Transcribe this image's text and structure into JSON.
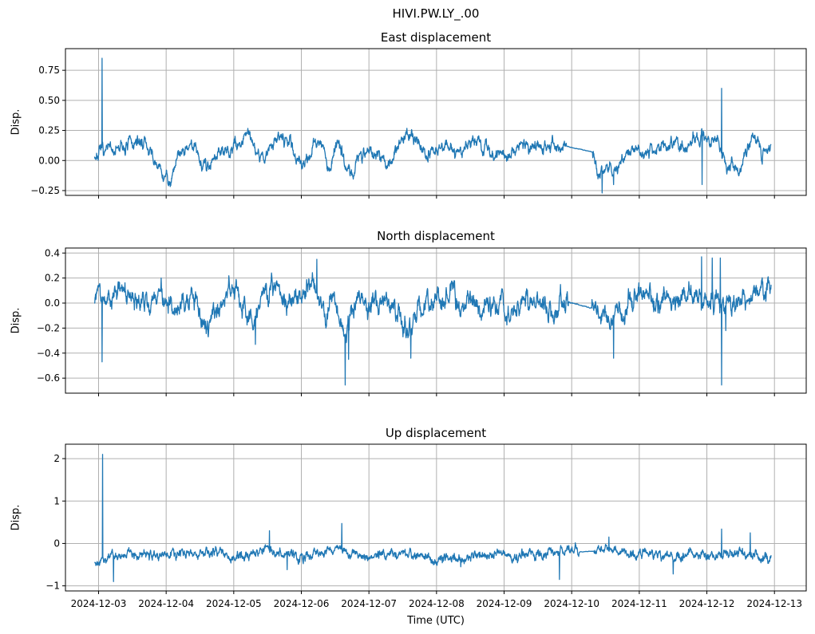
{
  "figure": {
    "suptitle": "HIVI.PW.LY_.00"
  },
  "style": {
    "line_color": "#1f77b4",
    "grid_color": "#b0b0b0",
    "frame_color": "#000000",
    "text_color": "#000000",
    "background": "#ffffff"
  },
  "x_axis": {
    "label": "Time (UTC)",
    "xlim": [
      -0.49,
      10.47
    ],
    "tick_positions": [
      0,
      1,
      2,
      3,
      4,
      5,
      6,
      7,
      8,
      9,
      10
    ],
    "tick_labels": [
      "2024-12-03",
      "2024-12-04",
      "2024-12-05",
      "2024-12-06",
      "2024-12-07",
      "2024-12-08",
      "2024-12-09",
      "2024-12-10",
      "2024-12-11",
      "2024-12-12",
      "2024-12-13"
    ],
    "data_range": [
      -0.06,
      9.95
    ],
    "samples": 2600,
    "seed": 7
  },
  "chart_data": [
    {
      "type": "line",
      "title": "East displacement",
      "ylabel": "Disp.",
      "ylim": [
        -0.29,
        0.93
      ],
      "yticks": [
        -0.25,
        0.0,
        0.25,
        0.5,
        0.75
      ],
      "ytick_labels": [
        "−0.25",
        "0.00",
        "0.25",
        "0.50",
        "0.75"
      ],
      "noise_sigma": 0.035,
      "noise_rho": 0.85,
      "flat_intervals": [
        [
          6.92,
          7.31
        ]
      ],
      "anchors": [
        [
          -0.06,
          0.04
        ],
        [
          0.15,
          0.07
        ],
        [
          0.35,
          0.1
        ],
        [
          0.55,
          0.14
        ],
        [
          0.68,
          0.16
        ],
        [
          0.82,
          -0.02
        ],
        [
          0.95,
          -0.12
        ],
        [
          1.05,
          -0.16
        ],
        [
          1.15,
          0.02
        ],
        [
          1.3,
          0.14
        ],
        [
          1.45,
          0.1
        ],
        [
          1.6,
          -0.06
        ],
        [
          1.75,
          0.1
        ],
        [
          1.9,
          0.05
        ],
        [
          2.05,
          0.12
        ],
        [
          2.2,
          0.28
        ],
        [
          2.32,
          0.1
        ],
        [
          2.45,
          0.02
        ],
        [
          2.6,
          0.14
        ],
        [
          2.72,
          0.24
        ],
        [
          2.85,
          0.12
        ],
        [
          3.0,
          -0.04
        ],
        [
          3.15,
          0.1
        ],
        [
          3.3,
          0.14
        ],
        [
          3.42,
          -0.08
        ],
        [
          3.55,
          0.22
        ],
        [
          3.68,
          -0.12
        ],
        [
          3.8,
          -0.02
        ],
        [
          3.95,
          0.1
        ],
        [
          4.1,
          0.06
        ],
        [
          4.25,
          -0.02
        ],
        [
          4.4,
          0.08
        ],
        [
          4.55,
          0.26
        ],
        [
          4.68,
          0.18
        ],
        [
          4.85,
          0.04
        ],
        [
          5.0,
          0.08
        ],
        [
          5.15,
          0.12
        ],
        [
          5.3,
          0.04
        ],
        [
          5.55,
          0.22
        ],
        [
          5.7,
          0.12
        ],
        [
          5.85,
          0.04
        ],
        [
          6.0,
          0.05
        ],
        [
          6.15,
          0.08
        ],
        [
          6.3,
          0.13
        ],
        [
          6.45,
          0.08
        ],
        [
          6.6,
          0.1
        ],
        [
          6.75,
          0.1
        ],
        [
          6.92,
          0.12
        ],
        [
          7.31,
          0.07
        ],
        [
          7.42,
          -0.12
        ],
        [
          7.52,
          -0.02
        ],
        [
          7.62,
          -0.14
        ],
        [
          7.75,
          0.02
        ],
        [
          7.9,
          0.1
        ],
        [
          8.05,
          0.06
        ],
        [
          8.2,
          0.09
        ],
        [
          8.35,
          0.12
        ],
        [
          8.5,
          0.14
        ],
        [
          8.62,
          0.09
        ],
        [
          8.75,
          0.13
        ],
        [
          8.9,
          0.18
        ],
        [
          9.05,
          0.2
        ],
        [
          9.18,
          0.18
        ],
        [
          9.28,
          -0.04
        ],
        [
          9.42,
          -0.08
        ],
        [
          9.52,
          -0.05
        ],
        [
          9.62,
          0.12
        ],
        [
          9.72,
          0.18
        ],
        [
          9.82,
          0.04
        ],
        [
          9.95,
          0.1
        ]
      ],
      "spikes": [
        [
          0.05,
          0.85
        ],
        [
          7.45,
          -0.27
        ],
        [
          7.62,
          -0.2
        ],
        [
          8.93,
          -0.2
        ],
        [
          9.22,
          0.6
        ]
      ]
    },
    {
      "type": "line",
      "title": "North displacement",
      "ylabel": "Disp.",
      "ylim": [
        -0.72,
        0.44
      ],
      "yticks": [
        -0.6,
        -0.4,
        -0.2,
        0.0,
        0.2,
        0.4
      ],
      "ytick_labels": [
        "−0.6",
        "−0.4",
        "−0.2",
        "0.0",
        "0.2",
        "0.4"
      ],
      "noise_sigma": 0.05,
      "noise_rho": 0.82,
      "flat_intervals": [
        [
          6.95,
          7.3
        ]
      ],
      "anchors": [
        [
          -0.06,
          0.02
        ],
        [
          0.1,
          0.04
        ],
        [
          0.25,
          0.08
        ],
        [
          0.4,
          0.12
        ],
        [
          0.55,
          -0.02
        ],
        [
          0.7,
          0.02
        ],
        [
          0.85,
          0.06
        ],
        [
          1.0,
          0.08
        ],
        [
          1.15,
          -0.06
        ],
        [
          1.3,
          0.04
        ],
        [
          1.45,
          0.02
        ],
        [
          1.6,
          -0.16
        ],
        [
          1.75,
          -0.02
        ],
        [
          1.9,
          0.08
        ],
        [
          2.05,
          0.1
        ],
        [
          2.2,
          -0.12
        ],
        [
          2.3,
          -0.18
        ],
        [
          2.45,
          0.08
        ],
        [
          2.6,
          0.14
        ],
        [
          2.75,
          -0.04
        ],
        [
          2.9,
          0.02
        ],
        [
          3.05,
          0.08
        ],
        [
          3.2,
          0.14
        ],
        [
          3.35,
          -0.1
        ],
        [
          3.5,
          0.05
        ],
        [
          3.62,
          -0.22
        ],
        [
          3.75,
          -0.05
        ],
        [
          3.9,
          0.02
        ],
        [
          4.05,
          -0.06
        ],
        [
          4.2,
          0.04
        ],
        [
          4.35,
          -0.02
        ],
        [
          4.5,
          -0.15
        ],
        [
          4.62,
          -0.28
        ],
        [
          4.75,
          0.0
        ],
        [
          4.9,
          0.04
        ],
        [
          5.05,
          0.0
        ],
        [
          5.2,
          0.1
        ],
        [
          5.35,
          -0.08
        ],
        [
          5.5,
          0.04
        ],
        [
          5.65,
          -0.1
        ],
        [
          5.8,
          0.0
        ],
        [
          5.95,
          0.04
        ],
        [
          6.1,
          -0.12
        ],
        [
          6.25,
          0.02
        ],
        [
          6.4,
          -0.04
        ],
        [
          6.55,
          0.02
        ],
        [
          6.7,
          -0.08
        ],
        [
          6.85,
          0.04
        ],
        [
          7.0,
          0.0
        ],
        [
          7.15,
          -0.02
        ],
        [
          7.3,
          -0.04
        ],
        [
          7.45,
          -0.08
        ],
        [
          7.6,
          -0.18
        ],
        [
          7.72,
          -0.12
        ],
        [
          7.85,
          -0.02
        ],
        [
          8.0,
          0.04
        ],
        [
          8.15,
          0.07
        ],
        [
          8.3,
          -0.04
        ],
        [
          8.45,
          0.0
        ],
        [
          8.6,
          0.03
        ],
        [
          8.75,
          0.1
        ],
        [
          8.9,
          0.05
        ],
        [
          9.05,
          0.0
        ],
        [
          9.2,
          -0.04
        ],
        [
          9.35,
          0.06
        ],
        [
          9.5,
          0.03
        ],
        [
          9.65,
          0.06
        ],
        [
          9.8,
          0.1
        ],
        [
          9.95,
          0.2
        ]
      ],
      "spikes": [
        [
          0.05,
          -0.47
        ],
        [
          2.32,
          -0.33
        ],
        [
          3.23,
          0.35
        ],
        [
          3.65,
          -0.655
        ],
        [
          3.7,
          -0.45
        ],
        [
          4.62,
          -0.44
        ],
        [
          7.62,
          -0.44
        ],
        [
          8.92,
          0.37
        ],
        [
          9.08,
          0.36
        ],
        [
          9.2,
          0.36
        ],
        [
          9.22,
          -0.655
        ],
        [
          9.28,
          -0.22
        ]
      ]
    },
    {
      "type": "line",
      "title": "Up displacement",
      "ylabel": "Disp.",
      "ylim": [
        -1.12,
        2.34
      ],
      "yticks": [
        -1,
        0,
        1,
        2
      ],
      "ytick_labels": [
        "−1",
        "0",
        "1",
        "2"
      ],
      "noise_sigma": 0.065,
      "noise_rho": 0.8,
      "flat_intervals": [
        [
          7.12,
          7.33
        ]
      ],
      "anchors": [
        [
          -0.06,
          -0.42
        ],
        [
          0.15,
          -0.32
        ],
        [
          0.35,
          -0.28
        ],
        [
          0.55,
          -0.25
        ],
        [
          0.75,
          -0.22
        ],
        [
          0.95,
          -0.3
        ],
        [
          1.15,
          -0.26
        ],
        [
          1.35,
          -0.22
        ],
        [
          1.55,
          -0.25
        ],
        [
          1.75,
          -0.2
        ],
        [
          1.95,
          -0.3
        ],
        [
          2.15,
          -0.26
        ],
        [
          2.35,
          -0.22
        ],
        [
          2.55,
          -0.16
        ],
        [
          2.75,
          -0.28
        ],
        [
          2.95,
          -0.32
        ],
        [
          3.15,
          -0.26
        ],
        [
          3.35,
          -0.22
        ],
        [
          3.55,
          -0.18
        ],
        [
          3.75,
          -0.26
        ],
        [
          3.95,
          -0.3
        ],
        [
          4.15,
          -0.24
        ],
        [
          4.35,
          -0.2
        ],
        [
          4.55,
          -0.24
        ],
        [
          4.75,
          -0.3
        ],
        [
          4.95,
          -0.38
        ],
        [
          5.15,
          -0.36
        ],
        [
          5.35,
          -0.34
        ],
        [
          5.55,
          -0.3
        ],
        [
          5.75,
          -0.26
        ],
        [
          5.95,
          -0.24
        ],
        [
          6.15,
          -0.28
        ],
        [
          6.35,
          -0.24
        ],
        [
          6.55,
          -0.22
        ],
        [
          6.75,
          -0.26
        ],
        [
          6.95,
          -0.16
        ],
        [
          7.15,
          -0.2
        ],
        [
          7.35,
          -0.18
        ],
        [
          7.55,
          -0.12
        ],
        [
          7.75,
          -0.2
        ],
        [
          7.95,
          -0.26
        ],
        [
          8.15,
          -0.18
        ],
        [
          8.35,
          -0.26
        ],
        [
          8.55,
          -0.3
        ],
        [
          8.75,
          -0.24
        ],
        [
          8.95,
          -0.26
        ],
        [
          9.15,
          -0.28
        ],
        [
          9.35,
          -0.2
        ],
        [
          9.55,
          -0.26
        ],
        [
          9.75,
          -0.3
        ],
        [
          9.95,
          -0.34
        ]
      ],
      "spikes": [
        [
          0.06,
          2.1
        ],
        [
          0.22,
          -0.9
        ],
        [
          2.53,
          0.3
        ],
        [
          2.79,
          -0.62
        ],
        [
          3.6,
          0.47
        ],
        [
          5.36,
          -0.55
        ],
        [
          6.82,
          -0.85
        ],
        [
          7.55,
          0.15
        ],
        [
          8.5,
          -0.72
        ],
        [
          9.22,
          0.34
        ],
        [
          9.64,
          0.25
        ]
      ]
    }
  ]
}
